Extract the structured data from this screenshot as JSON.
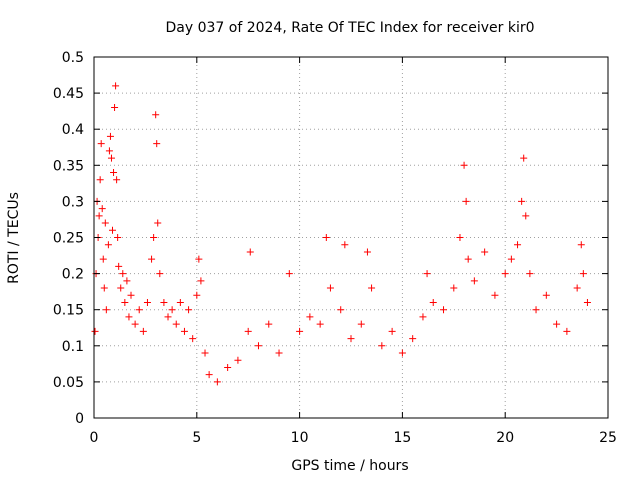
{
  "chart_data": {
    "type": "scatter",
    "title": "Day 037 of 2024, Rate Of TEC Index for receiver kir0",
    "xlabel": "GPS time / hours",
    "ylabel": "ROTI / TECUs",
    "xlim": [
      0,
      25
    ],
    "ylim": [
      0,
      0.5
    ],
    "x_ticks": [
      0,
      5,
      10,
      15,
      20,
      25
    ],
    "y_ticks": [
      0,
      0.05,
      0.1,
      0.15,
      0.2,
      0.25,
      0.3,
      0.35,
      0.4,
      0.45,
      0.5
    ],
    "grid": true,
    "marker": "+",
    "color": "#ff0000",
    "series": [
      {
        "points": [
          [
            0.05,
            0.12
          ],
          [
            0.1,
            0.2
          ],
          [
            0.15,
            0.3
          ],
          [
            0.2,
            0.25
          ],
          [
            0.25,
            0.28
          ],
          [
            0.3,
            0.33
          ],
          [
            0.35,
            0.38
          ],
          [
            0.4,
            0.29
          ],
          [
            0.45,
            0.22
          ],
          [
            0.5,
            0.18
          ],
          [
            0.55,
            0.27
          ],
          [
            0.6,
            0.15
          ],
          [
            0.7,
            0.24
          ],
          [
            0.75,
            0.37
          ],
          [
            0.8,
            0.39
          ],
          [
            0.85,
            0.36
          ],
          [
            0.9,
            0.26
          ],
          [
            0.95,
            0.34
          ],
          [
            1.0,
            0.43
          ],
          [
            1.05,
            0.46
          ],
          [
            1.1,
            0.33
          ],
          [
            1.15,
            0.25
          ],
          [
            1.2,
            0.21
          ],
          [
            1.3,
            0.18
          ],
          [
            1.4,
            0.2
          ],
          [
            1.5,
            0.16
          ],
          [
            1.6,
            0.19
          ],
          [
            1.7,
            0.14
          ],
          [
            1.8,
            0.17
          ],
          [
            2.0,
            0.13
          ],
          [
            2.2,
            0.15
          ],
          [
            2.4,
            0.12
          ],
          [
            2.6,
            0.16
          ],
          [
            2.8,
            0.22
          ],
          [
            2.9,
            0.25
          ],
          [
            3.0,
            0.42
          ],
          [
            3.05,
            0.38
          ],
          [
            3.1,
            0.27
          ],
          [
            3.2,
            0.2
          ],
          [
            3.4,
            0.16
          ],
          [
            3.6,
            0.14
          ],
          [
            3.8,
            0.15
          ],
          [
            4.0,
            0.13
          ],
          [
            4.2,
            0.16
          ],
          [
            4.4,
            0.12
          ],
          [
            4.6,
            0.15
          ],
          [
            4.8,
            0.11
          ],
          [
            5.0,
            0.17
          ],
          [
            5.1,
            0.22
          ],
          [
            5.2,
            0.19
          ],
          [
            5.4,
            0.09
          ],
          [
            5.6,
            0.06
          ],
          [
            6.0,
            0.05
          ],
          [
            6.5,
            0.07
          ],
          [
            7.0,
            0.08
          ],
          [
            7.5,
            0.12
          ],
          [
            7.6,
            0.23
          ],
          [
            8.0,
            0.1
          ],
          [
            8.5,
            0.13
          ],
          [
            9.0,
            0.09
          ],
          [
            9.5,
            0.2
          ],
          [
            10.0,
            0.12
          ],
          [
            10.5,
            0.14
          ],
          [
            11.0,
            0.13
          ],
          [
            11.3,
            0.25
          ],
          [
            11.5,
            0.18
          ],
          [
            12.0,
            0.15
          ],
          [
            12.2,
            0.24
          ],
          [
            12.5,
            0.11
          ],
          [
            13.0,
            0.13
          ],
          [
            13.3,
            0.23
          ],
          [
            13.5,
            0.18
          ],
          [
            14.0,
            0.1
          ],
          [
            14.5,
            0.12
          ],
          [
            15.0,
            0.09
          ],
          [
            15.5,
            0.11
          ],
          [
            16.0,
            0.14
          ],
          [
            16.2,
            0.2
          ],
          [
            16.5,
            0.16
          ],
          [
            17.0,
            0.15
          ],
          [
            17.5,
            0.18
          ],
          [
            17.8,
            0.25
          ],
          [
            18.0,
            0.35
          ],
          [
            18.1,
            0.3
          ],
          [
            18.2,
            0.22
          ],
          [
            18.5,
            0.19
          ],
          [
            19.0,
            0.23
          ],
          [
            19.5,
            0.17
          ],
          [
            20.0,
            0.2
          ],
          [
            20.3,
            0.22
          ],
          [
            20.6,
            0.24
          ],
          [
            20.8,
            0.3
          ],
          [
            20.9,
            0.36
          ],
          [
            21.0,
            0.28
          ],
          [
            21.2,
            0.2
          ],
          [
            21.5,
            0.15
          ],
          [
            22.0,
            0.17
          ],
          [
            22.5,
            0.13
          ],
          [
            23.0,
            0.12
          ],
          [
            23.5,
            0.18
          ],
          [
            23.7,
            0.24
          ],
          [
            23.8,
            0.2
          ],
          [
            24.0,
            0.16
          ]
        ]
      }
    ]
  }
}
